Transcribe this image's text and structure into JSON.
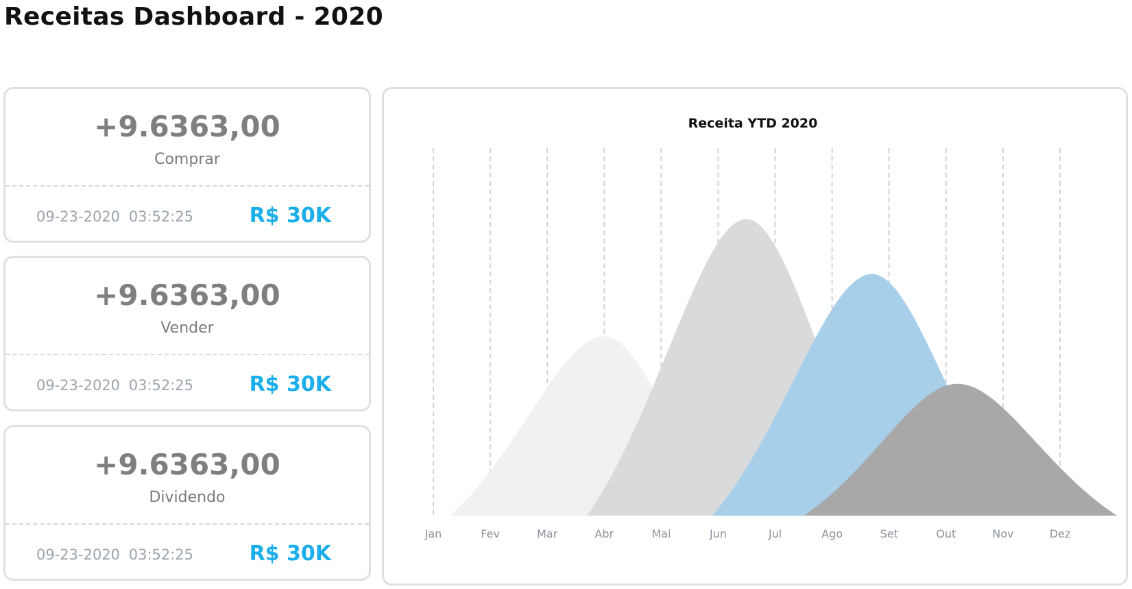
{
  "page": {
    "title": "Receitas Dashboard - 2020"
  },
  "cards": [
    {
      "value": "+9.6363,00",
      "label": "Comprar",
      "timestamp": "09-23-2020  03:52:25",
      "amount": "R$ 30K"
    },
    {
      "value": "+9.6363,00",
      "label": "Vender",
      "timestamp": "09-23-2020  03:52:25",
      "amount": "R$ 30K"
    },
    {
      "value": "+9.6363,00",
      "label": "Dividendo",
      "timestamp": "09-23-2020  03:52:25",
      "amount": "R$ 30K"
    }
  ],
  "colors": {
    "accent": "#1aaeea",
    "value_text": "#7f7f7f",
    "border": "#e0e0e0"
  },
  "chart_data": {
    "type": "area",
    "title": "Receita YTD 2020",
    "categories": [
      "Jan",
      "Fev",
      "Mar",
      "Abr",
      "Mai",
      "Jun",
      "Jul",
      "Ago",
      "Set",
      "Out",
      "Nov",
      "Dez"
    ],
    "grid": "vertical-dashed",
    "legend": "none",
    "series": [
      {
        "color": "#f1f1f1",
        "start": 0.3,
        "peak": 3.0,
        "end": 5.3,
        "height": 0.49
      },
      {
        "color": "#d9dadb",
        "start": 2.7,
        "peak": 5.5,
        "end": 8.1,
        "height": 0.81
      },
      {
        "color": "#a8cfea",
        "start": 4.9,
        "peak": 7.7,
        "end": 10.3,
        "height": 0.66
      },
      {
        "color": "#a9a8a9",
        "start": 6.5,
        "peak": 9.2,
        "end": 12.0,
        "height": 0.36
      }
    ]
  }
}
